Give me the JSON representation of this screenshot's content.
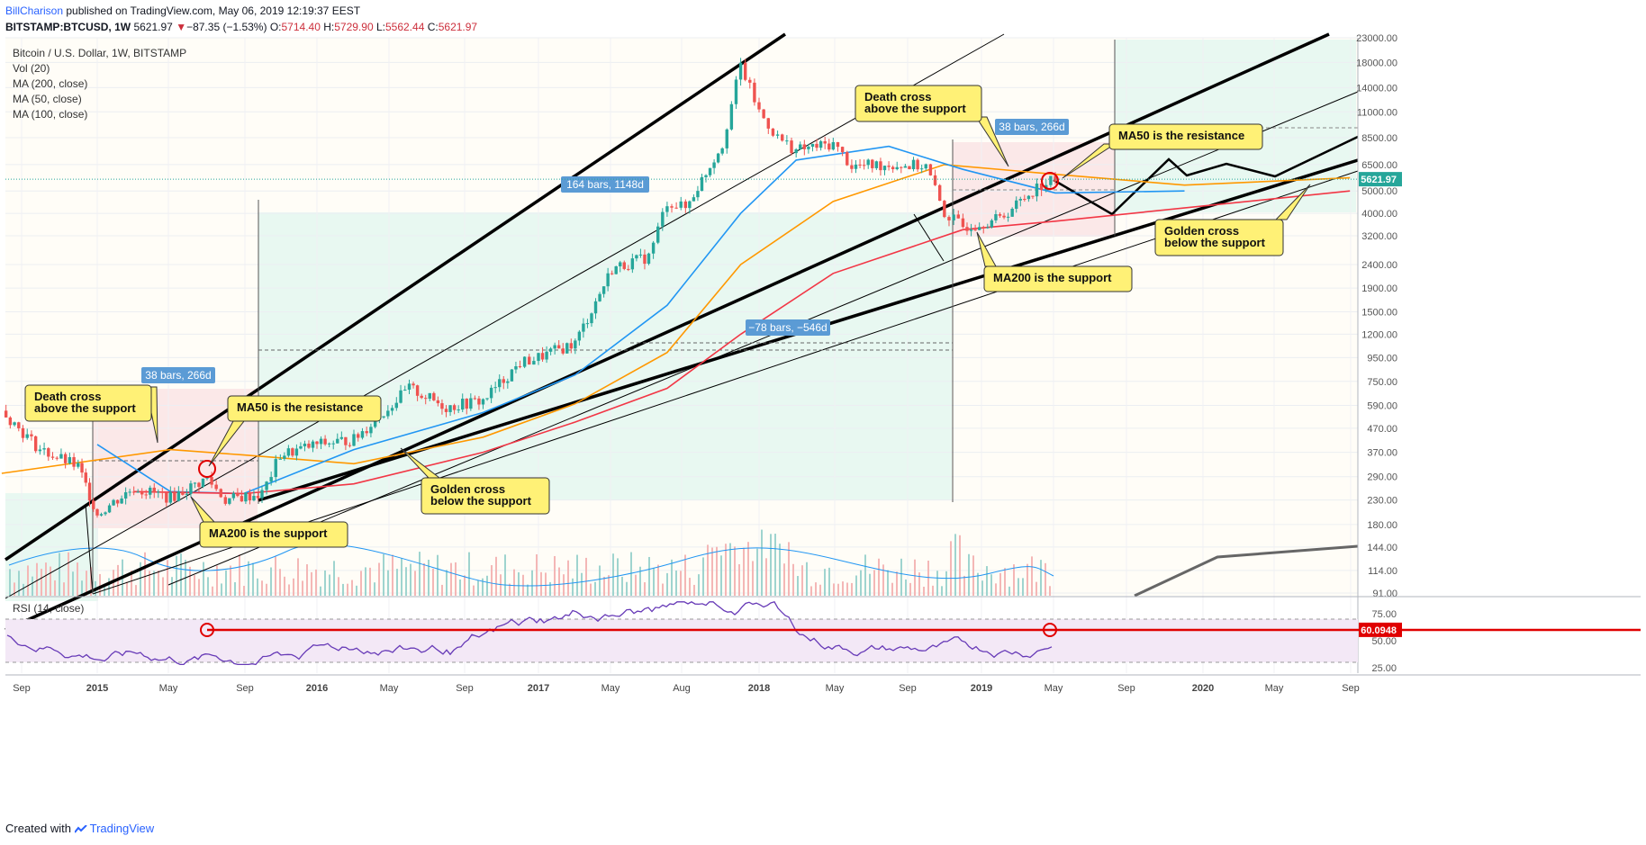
{
  "header": {
    "user": "BillCharison",
    "published": "published on TradingView.com, May 06, 2019 12:19:37 EEST",
    "symbol": "BITSTAMP:BTCUSD, 1W",
    "last": "5621.97",
    "change_arrow": "▼",
    "change": "−87.35 (−1.53%)",
    "o_label": "O:",
    "o": "5714.40",
    "h_label": "H:",
    "h": "5729.90",
    "l_label": "L:",
    "l": "5562.44",
    "c_label": "C:",
    "c": "5621.97"
  },
  "legend": {
    "title": "Bitcoin / U.S. Dollar, 1W, BITSTAMP",
    "vol": "Vol (20)",
    "ma200": "MA (200, close)",
    "ma50": "MA (50, close)",
    "ma100": "MA (100, close)"
  },
  "footer": {
    "created": "Created with",
    "brand": "TradingView"
  },
  "colors": {
    "up": "#26a69a",
    "down": "#ef5350",
    "ma50": "#2196f3",
    "ma100": "#ff9800",
    "ma200": "#f23645",
    "rsi": "#673ab7",
    "note_bg": "#fff176",
    "label_bg": "#5b9bd5",
    "green_zone": "#e6f7f0",
    "red_zone": "#fbe6e6"
  },
  "chart_data": {
    "type": "candlestick",
    "scale": "log",
    "price_axis": [
      "23000.00",
      "18000.00",
      "14000.00",
      "11000.00",
      "8500.00",
      "6500.00",
      "5000.00",
      "4000.00",
      "3200.00",
      "2400.00",
      "1900.00",
      "1500.00",
      "1200.00",
      "950.00",
      "750.00",
      "590.00",
      "470.00",
      "370.00",
      "290.00",
      "230.00",
      "180.00",
      "144.00",
      "114.00",
      "91.00"
    ],
    "price_values": [
      23000,
      18000,
      14000,
      11000,
      8500,
      6500,
      5000,
      4000,
      3200,
      2400,
      1900,
      1500,
      1200,
      950,
      750,
      590,
      470,
      370,
      290,
      230,
      180,
      144,
      114,
      91
    ],
    "last_price_label": "5621.97",
    "time_axis": [
      "Sep",
      "2015",
      "May",
      "Sep",
      "2016",
      "May",
      "Sep",
      "2017",
      "May",
      "Aug",
      "2018",
      "May",
      "Sep",
      "2019",
      "May",
      "Sep",
      "2020",
      "May",
      "Sep"
    ],
    "price_path": [
      [
        "2014-08",
        560
      ],
      [
        "2014-10",
        380
      ],
      [
        "2014-12",
        320
      ],
      [
        "2015-01",
        200
      ],
      [
        "2015-03",
        260
      ],
      [
        "2015-05",
        235
      ],
      [
        "2015-07",
        285
      ],
      [
        "2015-08",
        230
      ],
      [
        "2015-10",
        245
      ],
      [
        "2015-11",
        360
      ],
      [
        "2016-01",
        400
      ],
      [
        "2016-03",
        420
      ],
      [
        "2016-06",
        700
      ],
      [
        "2016-08",
        580
      ],
      [
        "2016-10",
        620
      ],
      [
        "2016-12",
        900
      ],
      [
        "2017-01",
        950
      ],
      [
        "2017-03",
        1100
      ],
      [
        "2017-05",
        2300
      ],
      [
        "2017-07",
        2600
      ],
      [
        "2017-08",
        4500
      ],
      [
        "2017-09",
        4200
      ],
      [
        "2017-11",
        8000
      ],
      [
        "2017-12",
        17500
      ],
      [
        "2018-01",
        11000
      ],
      [
        "2018-02",
        8500
      ],
      [
        "2018-03",
        7500
      ],
      [
        "2018-05",
        8000
      ],
      [
        "2018-06",
        6400
      ],
      [
        "2018-08",
        6500
      ],
      [
        "2018-10",
        6400
      ],
      [
        "2018-11",
        4000
      ],
      [
        "2018-12",
        3500
      ],
      [
        "2019-02",
        3800
      ],
      [
        "2019-04",
        5200
      ],
      [
        "2019-05",
        5621.97
      ]
    ],
    "ma50": [
      [
        "2015-01",
        400
      ],
      [
        "2015-05",
        250
      ],
      [
        "2015-09",
        245
      ],
      [
        "2016-03",
        380
      ],
      [
        "2016-10",
        550
      ],
      [
        "2017-03",
        800
      ],
      [
        "2017-08",
        1600
      ],
      [
        "2017-12",
        4000
      ],
      [
        "2018-03",
        6800
      ],
      [
        "2018-08",
        7800
      ],
      [
        "2018-12",
        6200
      ],
      [
        "2019-05",
        4900
      ],
      [
        "2019-12",
        5000
      ]
    ],
    "ma100": [
      [
        "2014-08",
        300
      ],
      [
        "2015-05",
        380
      ],
      [
        "2015-09",
        360
      ],
      [
        "2016-03",
        330
      ],
      [
        "2016-10",
        430
      ],
      [
        "2017-03",
        600
      ],
      [
        "2017-08",
        1000
      ],
      [
        "2017-12",
        2400
      ],
      [
        "2018-05",
        4500
      ],
      [
        "2018-11",
        6500
      ],
      [
        "2019-05",
        5900
      ],
      [
        "2019-12",
        5300
      ],
      [
        "2020-09",
        5700
      ]
    ],
    "ma200": [
      [
        "2015-03",
        250
      ],
      [
        "2015-09",
        245
      ],
      [
        "2016-03",
        270
      ],
      [
        "2016-10",
        370
      ],
      [
        "2017-03",
        500
      ],
      [
        "2017-08",
        700
      ],
      [
        "2017-12",
        1200
      ],
      [
        "2018-05",
        2200
      ],
      [
        "2018-12",
        3400
      ],
      [
        "2019-05",
        3700
      ],
      [
        "2020-09",
        5000
      ]
    ],
    "rsi": {
      "label": "RSI (14, close)",
      "axis": [
        "75.00",
        "60.0948",
        "50.00",
        "25.00"
      ],
      "axis_values": [
        75,
        60.0948,
        50,
        25
      ],
      "last": "60.0948",
      "upper": 70,
      "lower": 30,
      "resistance": 60
    },
    "annotations": [
      {
        "text": [
          "Death cross",
          "above the support"
        ]
      },
      {
        "text": [
          "MA50 is the resistance"
        ]
      },
      {
        "text": [
          "MA200 is the support"
        ]
      },
      {
        "text": [
          "Golden cross",
          "below the support"
        ]
      },
      {
        "text": [
          "Death cross",
          "above the support"
        ]
      },
      {
        "text": [
          "MA50 is the resistance"
        ]
      },
      {
        "text": [
          "MA200 is the support"
        ]
      },
      {
        "text": [
          "Golden cross",
          "below the support"
        ]
      }
    ],
    "range_labels": [
      "38 bars, 266d",
      "164 bars, 1148d",
      "−78 bars, −546d",
      "38 bars, 266d"
    ]
  }
}
